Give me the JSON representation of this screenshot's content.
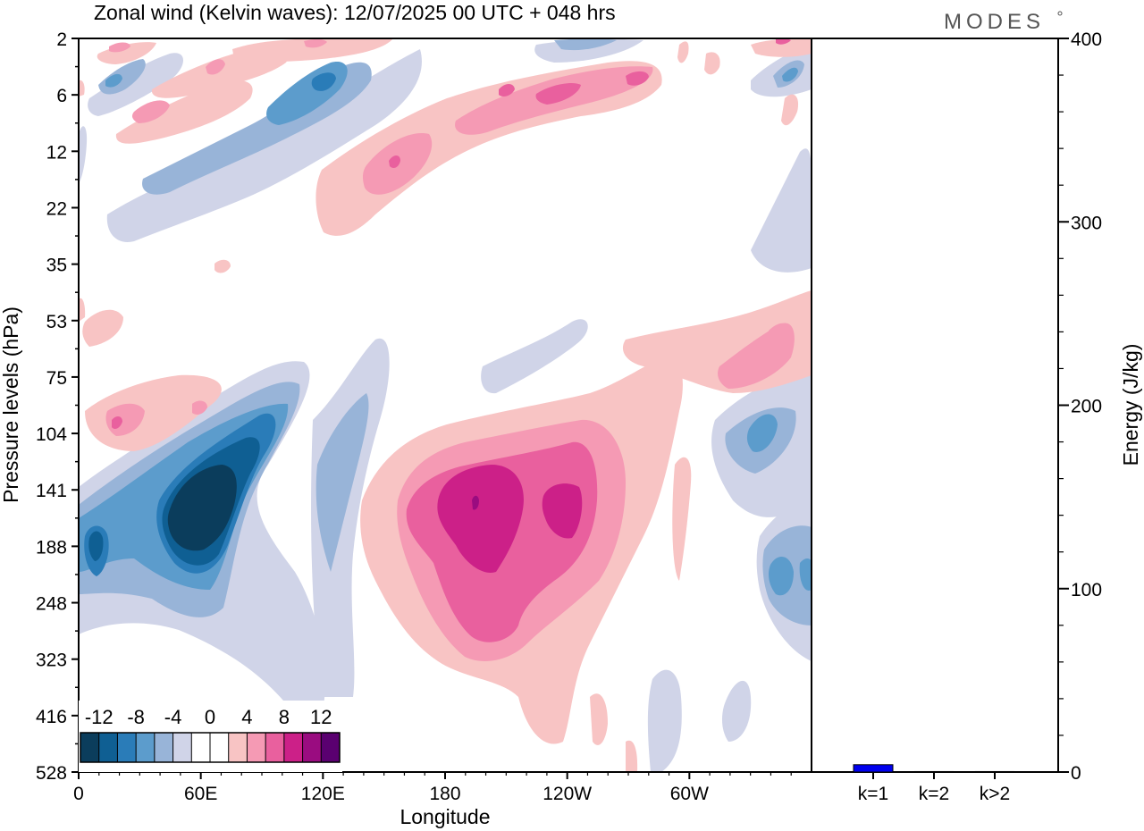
{
  "title": "Zonal wind (Kelvin waves):  12/07/2025  00 UTC  + 048 hrs",
  "logo": "MODES",
  "chart_data": [
    {
      "type": "heatmap",
      "title": "Zonal wind (Kelvin waves):  12/07/2025  00 UTC  + 048 hrs",
      "xlabel": "Longitude",
      "ylabel": "Pressure levels (hPa)",
      "x_ticks": [
        "0",
        "60E",
        "120E",
        "180",
        "120W",
        "60W"
      ],
      "y_ticks": [
        "2",
        "6",
        "12",
        "22",
        "35",
        "53",
        "75",
        "104",
        "141",
        "188",
        "248",
        "323",
        "416",
        "528"
      ],
      "xlim": [
        0,
        360
      ],
      "colorbar": {
        "labels": [
          "-12",
          "-8",
          "-4",
          "0",
          "4",
          "8",
          "12"
        ],
        "levels": [
          -14,
          -12,
          -10,
          -8,
          -6,
          -4,
          -2,
          0,
          2,
          4,
          6,
          8,
          10,
          12,
          14
        ],
        "colors": [
          "#0b3d5c",
          "#0f5f93",
          "#2a7cb8",
          "#5c9ccc",
          "#98b4d8",
          "#d0d4e8",
          "#ffffff",
          "#ffffff",
          "#f8c4c4",
          "#f59ab4",
          "#e9609e",
          "#cc2088",
          "#9a0c80",
          "#5a0070"
        ]
      },
      "features": [
        {
          "lon": 55,
          "level": 141,
          "value": -14
        },
        {
          "lon": 10,
          "level": 188,
          "value": -10
        },
        {
          "lon": 195,
          "level": 160,
          "value": 12
        },
        {
          "lon": 240,
          "level": 160,
          "value": 11
        },
        {
          "lon": 345,
          "level": 220,
          "value": -9
        },
        {
          "lon": 330,
          "level": 120,
          "value": -9
        },
        {
          "lon": 210,
          "level": 6,
          "value": 8
        },
        {
          "lon": 160,
          "level": 15,
          "value": 7
        },
        {
          "lon": 120,
          "level": 5,
          "value": -9
        },
        {
          "lon": 25,
          "level": 5,
          "value": -7
        },
        {
          "lon": 25,
          "level": 90,
          "value": 6
        },
        {
          "lon": 345,
          "level": 65,
          "value": 6
        }
      ]
    },
    {
      "type": "bar",
      "categories": [
        "k=1",
        "k=2",
        "k>2"
      ],
      "values": [
        4,
        0.5,
        0.5
      ],
      "ylabel": "Energy (J/kg)",
      "ylim": [
        0,
        400
      ],
      "y_ticks": [
        "0",
        "100",
        "200",
        "300",
        "400"
      ],
      "bar_color": "#0000ee"
    }
  ]
}
